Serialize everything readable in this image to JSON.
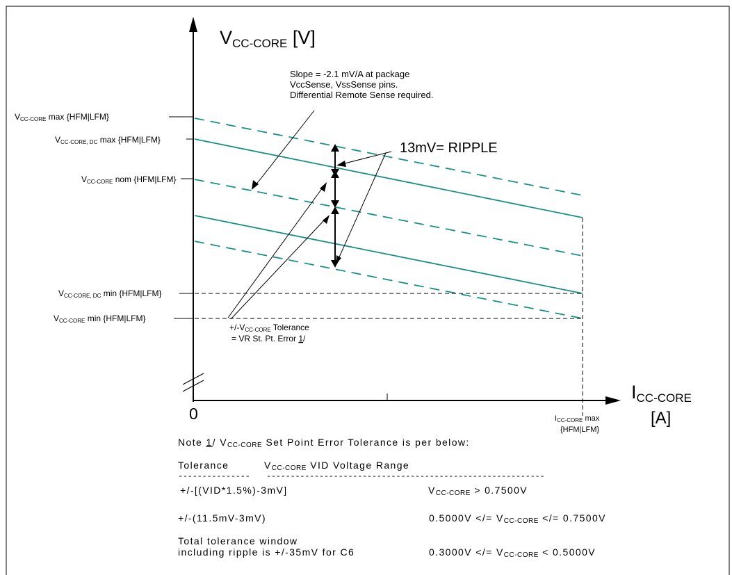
{
  "axes": {
    "y_label_main": "V",
    "y_label_sub": "CC-CORE",
    "y_label_unit": " [V]",
    "x_label_main": "I",
    "x_label_sub": "CC-CORE",
    "x_label_unit": "[A]",
    "origin": "0"
  },
  "y_labels": {
    "max": {
      "pre": "V",
      "sub": "CC-CORE",
      "post": " max {HFM|LFM}"
    },
    "dc_max": {
      "pre": "V",
      "sub": "CC-CORE, DC",
      "post": " max {HFM|LFM}"
    },
    "nom": {
      "pre": "V",
      "sub": "CC-CORE",
      "post": " nom {HFM|LFM}"
    },
    "dc_min": {
      "pre": "V",
      "sub": "CC-CORE, DC",
      "post": " min {HFM|LFM}"
    },
    "min": {
      "pre": "V",
      "sub": "CC-CORE",
      "post": " min {HFM|LFM}"
    }
  },
  "x_max_label": {
    "pre": "I",
    "sub": "CC-CORE",
    "post": " max",
    "line2": "{HFM|LFM}"
  },
  "annotations": {
    "slope_line1": "Slope = -2.1 mV/A at package",
    "slope_line2": "VccSense, VssSense pins.",
    "slope_line3": "Differential Remote Sense required.",
    "ripple": "13mV= RIPPLE",
    "tol_line1_pre": "+/-V",
    "tol_line1_sub": "CC-CORE",
    "tol_line1_post": " Tolerance",
    "tol_line2_pre": "= VR St. Pt. Error ",
    "tol_line2_ref": "1",
    "tol_line2_post": "/"
  },
  "note": {
    "prefix": "Note ",
    "ref": "1",
    "mid": "/  V",
    "sub": "CC-CORE",
    "suffix": " Set Point Error Tolerance is per below:"
  },
  "table": {
    "col1_header": "Tolerance",
    "col2_header_pre": "V",
    "col2_header_sub": "CC-CORE",
    "col2_header_post": " VID Voltage Range",
    "dashes1": "---------------",
    "dashes2": "----------------------------------------------------------",
    "rows": [
      {
        "tolerance": "+/-[(VID*1.5%)-3mV]",
        "range_pre": "V",
        "range_sub": "CC-CORE",
        "range_post": " > 0.7500V"
      },
      {
        "tolerance": "+/-(11.5mV-3mV)",
        "range_pre": "0.5000V </= V",
        "range_sub": "CC-CORE",
        "range_post": " </= 0.7500V"
      },
      {
        "tolerance_line1": "Total tolerance window",
        "tolerance": "including ripple is +/-35mV for C6",
        "range_pre": "0.3000V </= V",
        "range_sub": "CC-CORE",
        "range_post": " < 0.5000V"
      }
    ]
  },
  "colors": {
    "load_line": "#1a8f86",
    "axis": "#000000",
    "guide": "#000000"
  }
}
